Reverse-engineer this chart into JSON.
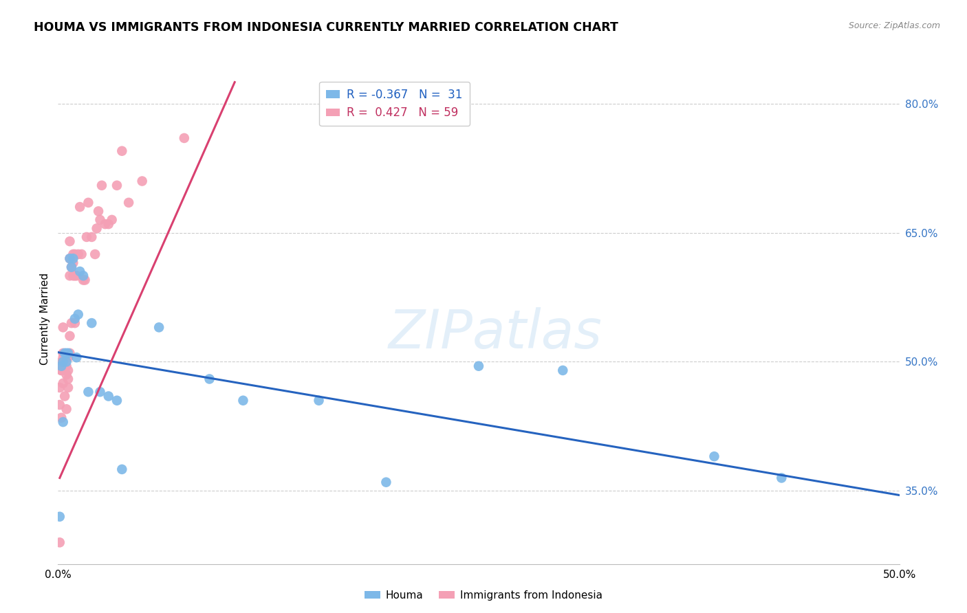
{
  "title": "HOUMA VS IMMIGRANTS FROM INDONESIA CURRENTLY MARRIED CORRELATION CHART",
  "source": "Source: ZipAtlas.com",
  "ylabel": "Currently Married",
  "x_min": 0.0,
  "x_max": 0.5,
  "y_min": 0.265,
  "y_max": 0.835,
  "y_ticks": [
    0.35,
    0.5,
    0.65,
    0.8
  ],
  "y_tick_labels": [
    "35.0%",
    "50.0%",
    "65.0%",
    "80.0%"
  ],
  "houma_R": -0.367,
  "houma_N": 31,
  "indonesia_R": 0.427,
  "indonesia_N": 59,
  "houma_color": "#7db8e8",
  "indonesia_color": "#f4a0b5",
  "houma_line_color": "#2563bf",
  "indonesia_line_color": "#d94070",
  "watermark": "ZIPatlas",
  "houma_line_x0": 0.0,
  "houma_line_y0": 0.511,
  "houma_line_x1": 0.5,
  "houma_line_y1": 0.345,
  "indonesia_line_x0": 0.001,
  "indonesia_line_y0": 0.365,
  "indonesia_line_x1": 0.105,
  "indonesia_line_y1": 0.825,
  "houma_x": [
    0.001,
    0.002,
    0.003,
    0.004,
    0.005,
    0.005,
    0.006,
    0.007,
    0.008,
    0.009,
    0.01,
    0.011,
    0.012,
    0.013,
    0.015,
    0.018,
    0.02,
    0.025,
    0.03,
    0.035,
    0.038,
    0.06,
    0.09,
    0.11,
    0.155,
    0.195,
    0.25,
    0.3,
    0.39,
    0.43,
    0.003
  ],
  "houma_y": [
    0.32,
    0.495,
    0.5,
    0.51,
    0.5,
    0.51,
    0.51,
    0.62,
    0.61,
    0.62,
    0.55,
    0.505,
    0.555,
    0.605,
    0.6,
    0.465,
    0.545,
    0.465,
    0.46,
    0.455,
    0.375,
    0.54,
    0.48,
    0.455,
    0.455,
    0.36,
    0.495,
    0.49,
    0.39,
    0.365,
    0.43
  ],
  "indonesia_x": [
    0.001,
    0.001,
    0.001,
    0.002,
    0.002,
    0.002,
    0.002,
    0.003,
    0.003,
    0.003,
    0.003,
    0.003,
    0.003,
    0.004,
    0.004,
    0.004,
    0.005,
    0.005,
    0.005,
    0.005,
    0.006,
    0.006,
    0.006,
    0.006,
    0.007,
    0.007,
    0.007,
    0.007,
    0.007,
    0.008,
    0.008,
    0.009,
    0.009,
    0.009,
    0.01,
    0.01,
    0.01,
    0.011,
    0.012,
    0.013,
    0.014,
    0.015,
    0.016,
    0.017,
    0.018,
    0.02,
    0.022,
    0.023,
    0.024,
    0.025,
    0.026,
    0.028,
    0.03,
    0.032,
    0.035,
    0.038,
    0.042,
    0.05,
    0.075
  ],
  "indonesia_y": [
    0.29,
    0.45,
    0.47,
    0.435,
    0.49,
    0.49,
    0.5,
    0.475,
    0.495,
    0.5,
    0.505,
    0.51,
    0.54,
    0.46,
    0.49,
    0.505,
    0.445,
    0.485,
    0.495,
    0.505,
    0.47,
    0.48,
    0.49,
    0.505,
    0.51,
    0.53,
    0.6,
    0.62,
    0.64,
    0.545,
    0.61,
    0.6,
    0.615,
    0.625,
    0.545,
    0.6,
    0.625,
    0.6,
    0.625,
    0.68,
    0.625,
    0.595,
    0.595,
    0.645,
    0.685,
    0.645,
    0.625,
    0.655,
    0.675,
    0.665,
    0.705,
    0.66,
    0.66,
    0.665,
    0.705,
    0.745,
    0.685,
    0.71,
    0.76
  ]
}
